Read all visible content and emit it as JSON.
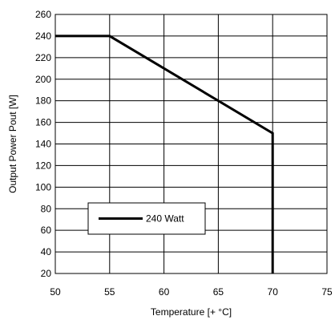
{
  "chart_data": {
    "type": "line",
    "title": "",
    "xlabel": "Temperature [+ °C]",
    "ylabel": "Output Power Pout [W]",
    "xlim": [
      50,
      75
    ],
    "ylim": [
      20,
      260
    ],
    "x_ticks": [
      50,
      55,
      60,
      65,
      70,
      75
    ],
    "y_ticks": [
      20,
      40,
      60,
      80,
      100,
      120,
      140,
      160,
      180,
      200,
      220,
      240,
      260
    ],
    "grid": true,
    "legend_position": "lower-left",
    "series": [
      {
        "name": "240 Watt",
        "color": "#000000",
        "x": [
          50,
          55,
          70,
          70
        ],
        "y": [
          240,
          240,
          150,
          20
        ]
      }
    ]
  }
}
